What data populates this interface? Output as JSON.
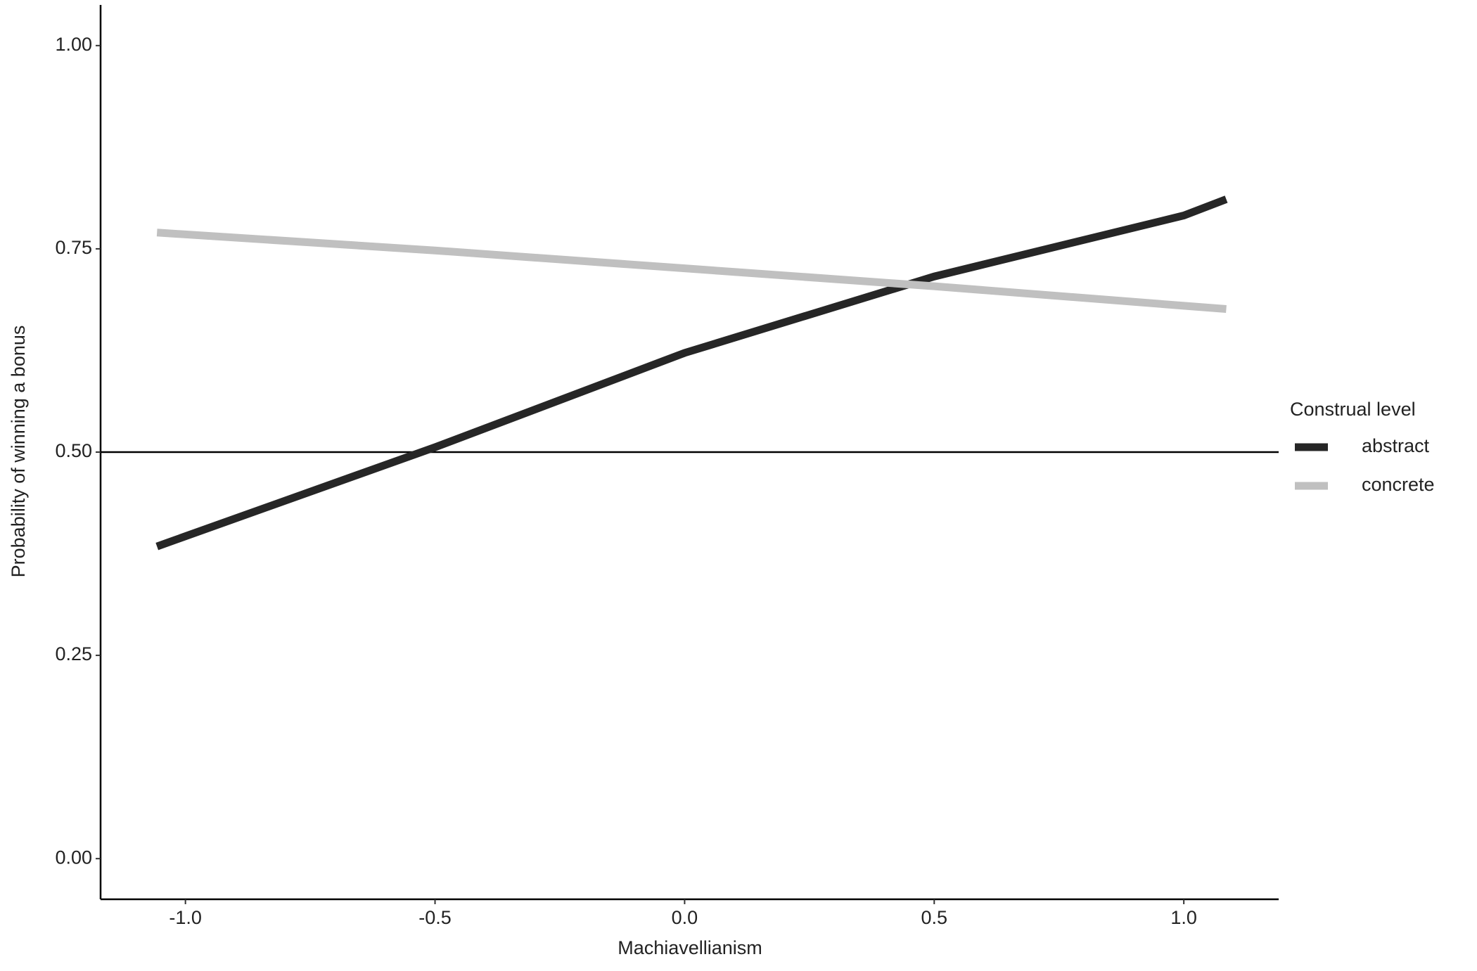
{
  "chart_data": {
    "type": "line",
    "x_label": "Machiavellianism",
    "y_label": "Probability of winning a bonus",
    "legend_title": "Construal level",
    "legend_position": "right",
    "x": [
      -1.057,
      -0.5,
      0,
      0.5,
      1.0,
      1.085
    ],
    "series": [
      {
        "name": "abstract",
        "color": "#262626",
        "values": [
          0.384,
          0.506,
          0.622,
          0.716,
          0.791,
          0.811
        ]
      },
      {
        "name": "concrete",
        "color": "#c0c0c0",
        "values": [
          0.77,
          0.748,
          0.726,
          0.704,
          0.68,
          0.676
        ]
      }
    ],
    "hline": 0.5,
    "xlim": [
      -1.17,
      1.19
    ],
    "ylim": [
      -0.05,
      1.05
    ],
    "xticks": [
      {
        "value": -1,
        "label": "-1.0"
      },
      -0.5,
      {
        "value": 0,
        "label": "0.0"
      },
      0.5,
      {
        "value": 1,
        "label": "1.0"
      }
    ],
    "yticks": [
      {
        "value": 0,
        "label": "0.00"
      },
      0.25,
      {
        "value": 0.5,
        "label": "0.50"
      },
      0.75,
      {
        "value": 1,
        "label": "1.00"
      }
    ],
    "grid": false
  }
}
